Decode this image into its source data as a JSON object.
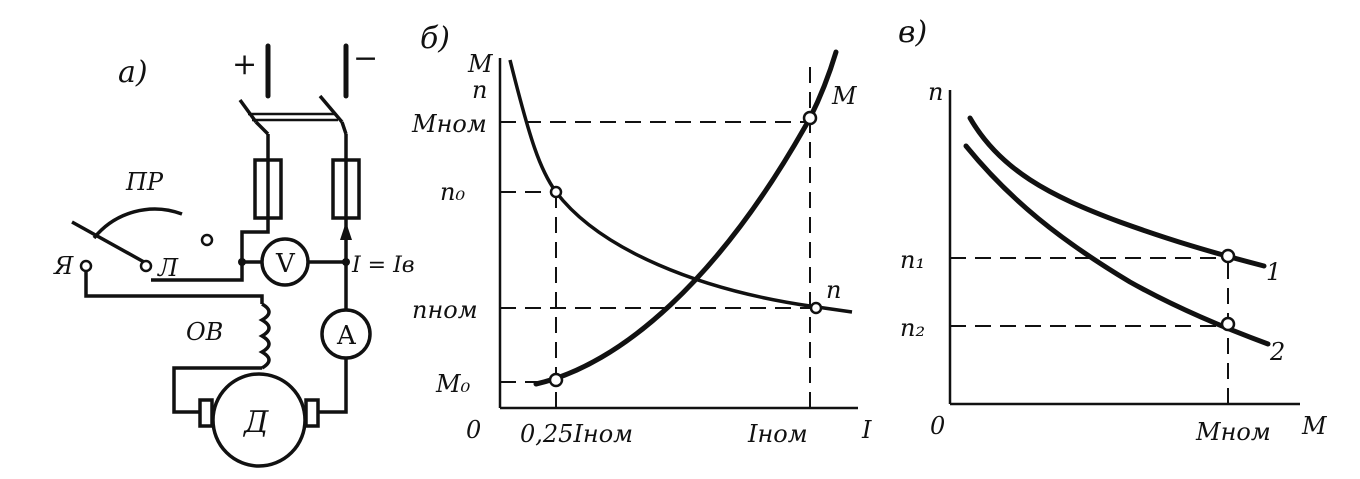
{
  "panel_a": {
    "label": "а)",
    "plus": "+",
    "minus": "−",
    "rheostat": "ПР",
    "terminal_ya": "Я",
    "terminal_l": "Л",
    "voltmeter": "V",
    "ammeter": "A",
    "current_eq": "I = Iв",
    "field_winding": "ОВ",
    "motor": "Д"
  },
  "panel_b": {
    "label": "б)",
    "y_axis_m": "M",
    "y_axis_n": "n",
    "x_axis": "I",
    "origin": "0",
    "tick_m_nom": "Mном",
    "tick_n0": "n₀",
    "tick_n_nom": "nном",
    "tick_m0": "M₀",
    "tick_x1": "0,25Iном",
    "tick_x2": "Iном",
    "curve_m": "M",
    "curve_n": "n"
  },
  "panel_c": {
    "label": "в)",
    "y_axis": "n",
    "x_axis": "M",
    "origin": "0",
    "tick_n1": "n₁",
    "tick_n2": "n₂",
    "tick_m_nom": "Mном",
    "curve_1": "1",
    "curve_2": "2"
  }
}
